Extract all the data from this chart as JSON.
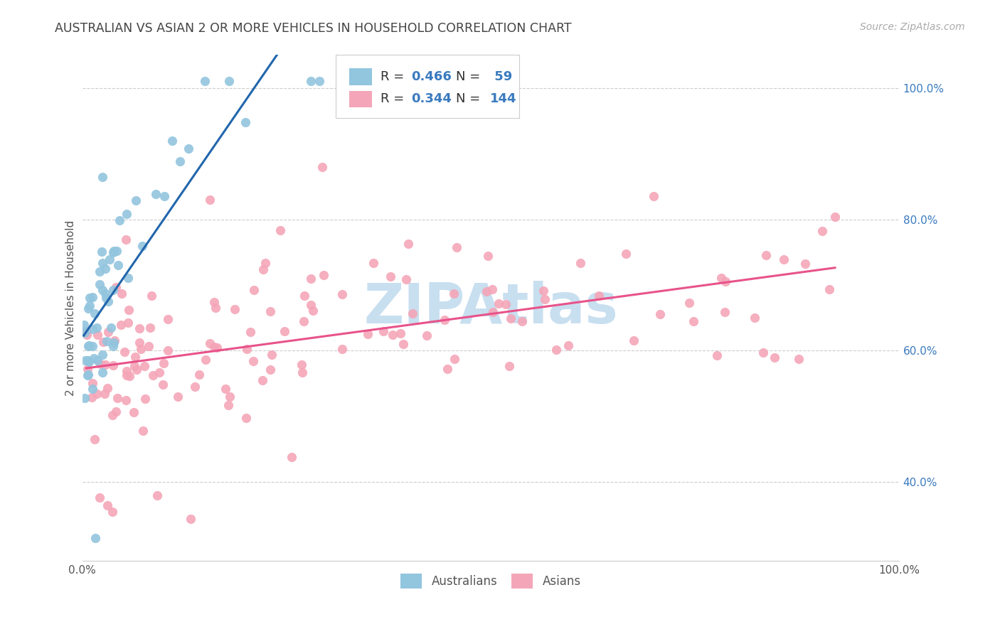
{
  "title": "AUSTRALIAN VS ASIAN 2 OR MORE VEHICLES IN HOUSEHOLD CORRELATION CHART",
  "source": "Source: ZipAtlas.com",
  "ylabel": "2 or more Vehicles in Household",
  "color_australian": "#92c5de",
  "color_asian": "#f4a6b8",
  "color_line_australian": "#2166ac",
  "color_line_asian": "#e8538a",
  "color_watermark": "#c8dff0",
  "color_right_axis_labels": "#3a7abf",
  "color_title": "#444444",
  "color_source": "#aaaaaa",
  "xlim": [
    0.0,
    1.0
  ],
  "ylim": [
    0.28,
    1.05
  ],
  "yticks_right": [
    0.4,
    0.6,
    0.8,
    1.0
  ],
  "ytick_right_labels": [
    "40.0%",
    "60.0%",
    "80.0%",
    "100.0%"
  ]
}
